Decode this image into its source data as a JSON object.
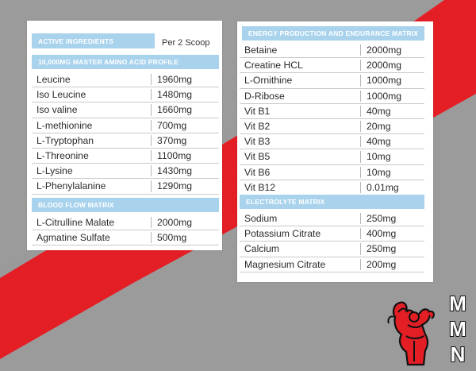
{
  "colors": {
    "background_gray": "#9a9a9a",
    "accent_red": "#e41e25",
    "header_blue": "#a9d3ec",
    "card_white": "#ffffff"
  },
  "left_panel": {
    "header": "ACTIVE INGREDIENTS",
    "serving": "Per 2 Scoop",
    "sections": [
      {
        "title": "10,000MG MASTER AMINO ACID PROFILE",
        "rows": [
          {
            "name": "Leucine",
            "amount": "1960mg"
          },
          {
            "name": "Iso Leucine",
            "amount": "1480mg"
          },
          {
            "name": "Iso valine",
            "amount": "1660mg"
          },
          {
            "name": "L-methionine",
            "amount": "700mg"
          },
          {
            "name": "L-Tryptophan",
            "amount": "370mg"
          },
          {
            "name": "L-Threonine",
            "amount": "1100mg"
          },
          {
            "name": "L-Lysine",
            "amount": "1430mg"
          },
          {
            "name": "L-Phenylalanine",
            "amount": "1290mg"
          }
        ]
      },
      {
        "title": "BLOOD FLOW MATRIX",
        "rows": [
          {
            "name": "L-Citrulline Malate",
            "amount": "2000mg"
          },
          {
            "name": "Agmatine Sulfate",
            "amount": "500mg"
          }
        ]
      }
    ]
  },
  "right_panel": {
    "sections": [
      {
        "title": "ENERGY PRODUCTION AND ENDURANCE MATRIX",
        "rows": [
          {
            "name": "Betaine",
            "amount": "2000mg"
          },
          {
            "name": "Creatine HCL",
            "amount": "2000mg"
          },
          {
            "name": "L-Ornithine",
            "amount": "1000mg"
          },
          {
            "name": "D-Ribose",
            "amount": "1000mg"
          },
          {
            "name": "Vit B1",
            "amount": "40mg"
          },
          {
            "name": "Vit B2",
            "amount": "20mg"
          },
          {
            "name": "Vit B3",
            "amount": "40mg"
          },
          {
            "name": "Vit B5",
            "amount": "10mg"
          },
          {
            "name": "Vit B6",
            "amount": "10mg"
          },
          {
            "name": "Vit B12",
            "amount": "0.01mg"
          }
        ]
      },
      {
        "title": "ELECTROLYTE MATRIX",
        "rows": [
          {
            "name": "Sodium",
            "amount": "250mg"
          },
          {
            "name": "Potassium Citrate",
            "amount": "400mg"
          },
          {
            "name": "Calcium",
            "amount": "250mg"
          },
          {
            "name": "Magnesium Citrate",
            "amount": "200mg"
          }
        ]
      }
    ]
  },
  "logo": {
    "icon": "flexing-bodybuilder-icon",
    "letters": [
      "M",
      "M",
      "N"
    ]
  }
}
